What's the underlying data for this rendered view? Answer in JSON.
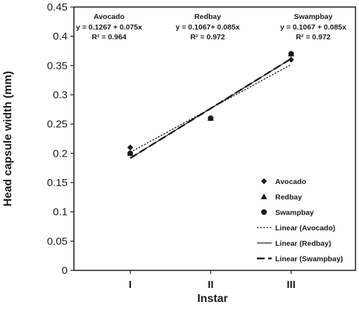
{
  "chart_data": {
    "type": "scatter",
    "xlabel": "Instar",
    "ylabel": "Head capsule width (mm)",
    "ylim": [
      0,
      0.45
    ],
    "y_ticks": [
      "0",
      "0.05",
      "0.1",
      "0.15",
      "0.2",
      "0.25",
      "0.3",
      "0.35",
      "0.4",
      "0.45"
    ],
    "x": [
      1,
      2,
      3
    ],
    "x_tick_labels": [
      "I",
      "II",
      "III"
    ],
    "grid": false,
    "legend_position": "bottom-right",
    "series": [
      {
        "name": "Avocado",
        "marker": "diamond",
        "values": [
          0.21,
          0.26,
          0.36
        ]
      },
      {
        "name": "Redbay",
        "marker": "triangle",
        "values": [
          0.2,
          0.26,
          0.37
        ]
      },
      {
        "name": "Swampbay",
        "marker": "circle",
        "values": [
          0.2,
          0.26,
          0.37
        ]
      }
    ],
    "trendlines": [
      {
        "name": "Linear (Avocado)",
        "style": "dotted",
        "intercept": 0.1267,
        "slope": 0.075
      },
      {
        "name": "Linear (Redbay)",
        "style": "solid",
        "intercept": 0.1067,
        "slope": 0.085
      },
      {
        "name": "Linear (Swampbay)",
        "style": "long-dash",
        "intercept": 0.1067,
        "slope": 0.085
      }
    ],
    "annotations": [
      {
        "title": "Avocado",
        "equation": "y = 0.1267 + 0.075x",
        "r2": "R² = 0.964"
      },
      {
        "title": "Redbay",
        "equation": "y = 0.1067+ 0.085x",
        "r2": "R² = 0.972"
      },
      {
        "title": "Swampbay",
        "equation": "y = 0.1067 + 0.085x",
        "r2": "R² = 0.972"
      }
    ],
    "colors": {
      "ink": "#1a1a1a",
      "background": "#ffffff"
    }
  }
}
